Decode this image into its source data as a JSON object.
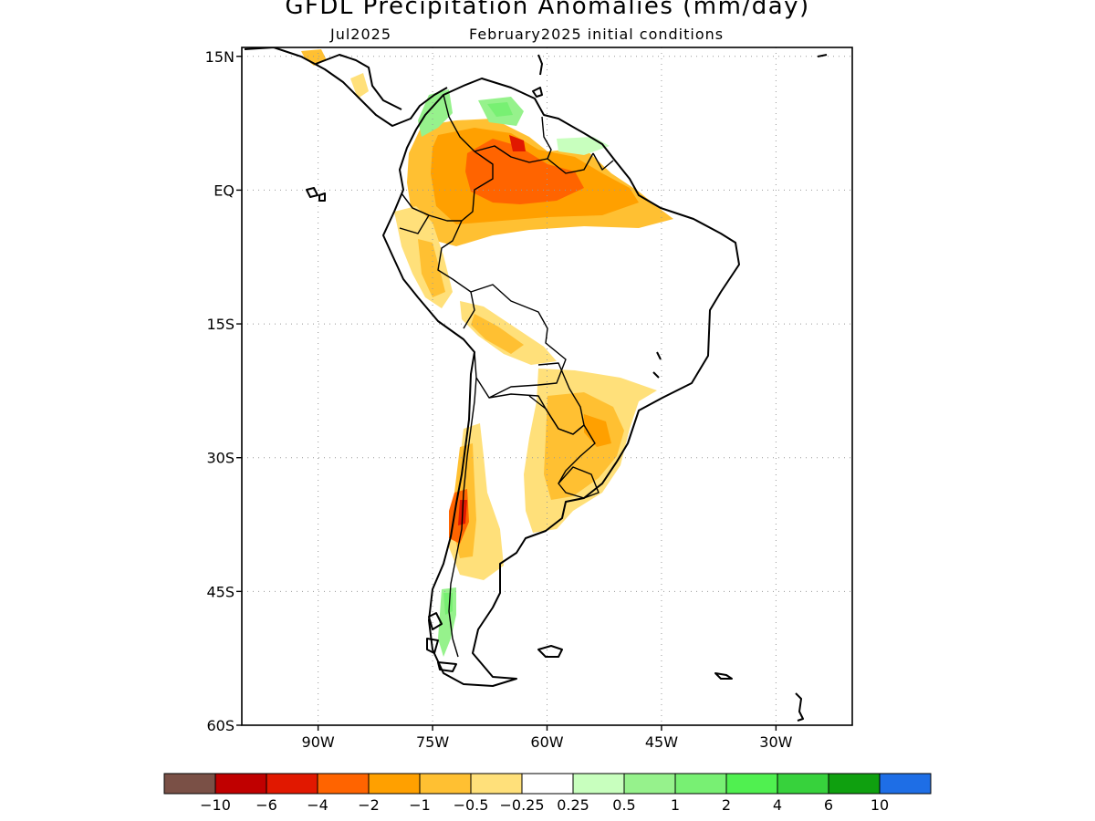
{
  "header": {
    "title": "GFDL Precipitation Anomalies (mm/day)",
    "month": "Jul2025",
    "initial_conditions": "February2025 initial conditions"
  },
  "map": {
    "region": "South America",
    "lat_labels": [
      "15N",
      "EQ",
      "15S",
      "30S",
      "45S",
      "60S"
    ],
    "lat_values": [
      15,
      0,
      -15,
      -30,
      -45,
      -60
    ],
    "lon_labels": [
      "90W",
      "75W",
      "60W",
      "45W",
      "30W"
    ],
    "lon_values": [
      -90,
      -75,
      -60,
      -45,
      -30
    ],
    "lon_range": [
      -100,
      -20
    ],
    "lat_range": [
      -60,
      16
    ],
    "grid": "dotted"
  },
  "legend": {
    "colors": [
      "#7a5046",
      "#c00000",
      "#e11800",
      "#ff6400",
      "#ffa000",
      "#ffc032",
      "#ffe07a",
      "#ffffff",
      "#c8ffbe",
      "#96f28c",
      "#78f073",
      "#50f050",
      "#37d23c",
      "#0fa00f",
      "#1e6ee6"
    ],
    "tick_labels": [
      "-10",
      "-6",
      "-4",
      "-2",
      "-1",
      "-0.5",
      "-0.25",
      "0.25",
      "0.5",
      "1",
      "2",
      "4",
      "6",
      "10"
    ]
  }
}
